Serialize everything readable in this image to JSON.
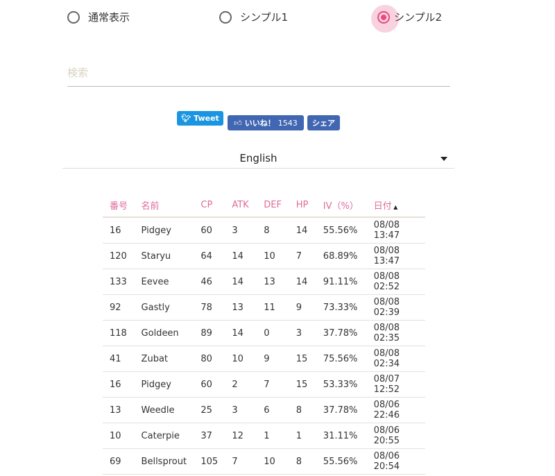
{
  "view_modes": [
    {
      "label": "通常表示",
      "selected": false
    },
    {
      "label": "シンプル1",
      "selected": false
    },
    {
      "label": "シンプル2",
      "selected": true
    }
  ],
  "search": {
    "placeholder": "検索",
    "value": ""
  },
  "social": {
    "tweet": "Tweet",
    "like": "いいね！",
    "like_count": "1543",
    "share": "シェア"
  },
  "language": {
    "selected": "English"
  },
  "colors": {
    "accent": "#e84a7f",
    "twitter": "#1b95e0",
    "facebook": "#4267b2"
  },
  "table": {
    "headers": [
      "番号",
      "名前",
      "CP",
      "ATK",
      "DEF",
      "HP",
      "IV（%）",
      "日付"
    ],
    "sort": {
      "column": "日付",
      "direction": "ascending-indicator"
    },
    "rows": [
      [
        "16",
        "Pidgey",
        "60",
        "3",
        "8",
        "14",
        "55.56%",
        "08/08 13:47"
      ],
      [
        "120",
        "Staryu",
        "64",
        "14",
        "10",
        "7",
        "68.89%",
        "08/08 13:47"
      ],
      [
        "133",
        "Eevee",
        "46",
        "14",
        "13",
        "14",
        "91.11%",
        "08/08 02:52"
      ],
      [
        "92",
        "Gastly",
        "78",
        "13",
        "11",
        "9",
        "73.33%",
        "08/08 02:39"
      ],
      [
        "118",
        "Goldeen",
        "89",
        "14",
        "0",
        "3",
        "37.78%",
        "08/08 02:35"
      ],
      [
        "41",
        "Zubat",
        "80",
        "10",
        "9",
        "15",
        "75.56%",
        "08/08 02:34"
      ],
      [
        "16",
        "Pidgey",
        "60",
        "2",
        "7",
        "15",
        "53.33%",
        "08/07 12:52"
      ],
      [
        "13",
        "Weedle",
        "25",
        "3",
        "6",
        "8",
        "37.78%",
        "08/06 22:46"
      ],
      [
        "10",
        "Caterpie",
        "37",
        "12",
        "1",
        "1",
        "31.11%",
        "08/06 20:55"
      ],
      [
        "69",
        "Bellsprout",
        "105",
        "7",
        "10",
        "8",
        "55.56%",
        "08/06 20:54"
      ]
    ]
  }
}
